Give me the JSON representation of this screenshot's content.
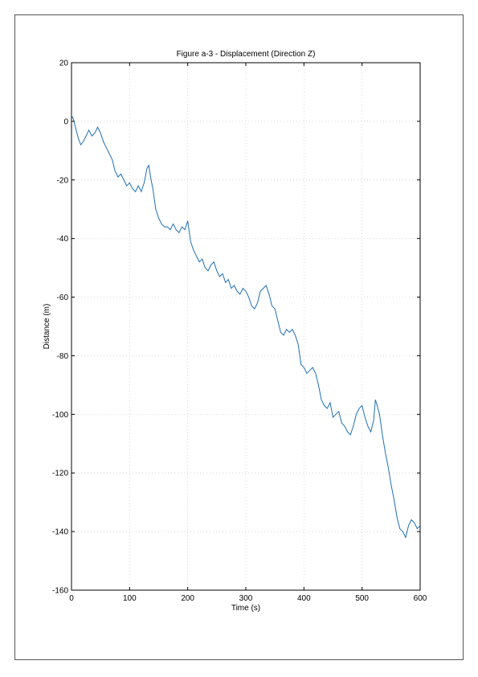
{
  "chart_data": {
    "type": "line",
    "title": "Figure a-3 - Displacement (Direction Z)",
    "xlabel": "Time (s)",
    "ylabel": "Distance (m)",
    "xlim": [
      0,
      600
    ],
    "ylim": [
      -160,
      20
    ],
    "xticks": [
      0,
      100,
      200,
      300,
      400,
      500,
      600
    ],
    "yticks": [
      20,
      0,
      -20,
      -40,
      -60,
      -80,
      -100,
      -120,
      -140,
      -160
    ],
    "xtick_labels": [
      "0",
      "100",
      "200",
      "300",
      "400",
      "500",
      "600"
    ],
    "ytick_labels": [
      "20",
      "0",
      "-20",
      "-40",
      "-60",
      "-80",
      "-100",
      "-120",
      "-140",
      "-160"
    ],
    "grid": true,
    "line_color": "#1f6fb4",
    "series": [
      {
        "x": [
          0,
          3,
          8,
          12,
          16,
          20,
          25,
          30,
          35,
          40,
          45,
          50,
          55,
          60,
          65,
          70,
          75,
          80,
          85,
          90,
          95,
          100,
          105,
          110,
          115,
          120,
          125,
          130,
          133,
          136,
          140,
          145,
          150,
          155,
          160,
          165,
          170,
          175,
          180,
          185,
          190,
          195,
          200,
          205,
          210,
          215,
          220,
          225,
          230,
          235,
          240,
          245,
          250,
          255,
          260,
          265,
          270,
          275,
          280,
          285,
          290,
          295,
          300,
          305,
          310,
          315,
          320,
          325,
          330,
          335,
          340,
          345,
          350,
          355,
          360,
          365,
          370,
          375,
          380,
          385,
          390,
          395,
          400,
          405,
          410,
          415,
          420,
          425,
          430,
          435,
          440,
          445,
          450,
          455,
          460,
          465,
          470,
          475,
          480,
          485,
          490,
          495,
          500,
          505,
          510,
          515,
          520,
          523,
          526,
          530,
          535,
          540,
          545,
          550,
          555,
          560,
          565,
          570,
          575,
          580,
          585,
          590,
          595,
          600
        ],
        "values": [
          2,
          1,
          -3,
          -6,
          -8,
          -7,
          -5,
          -3,
          -5,
          -4,
          -2,
          -4,
          -7,
          -9,
          -11,
          -13,
          -17,
          -19,
          -18,
          -20,
          -22,
          -21,
          -23,
          -24,
          -22,
          -24,
          -21,
          -16,
          -15,
          -19,
          -23,
          -30,
          -33,
          -35,
          -36,
          -36,
          -37,
          -35,
          -37,
          -38,
          -36,
          -37,
          -34,
          -41,
          -44,
          -46,
          -48,
          -47,
          -50,
          -51,
          -49,
          -48,
          -51,
          -53,
          -52,
          -55,
          -54,
          -57,
          -56,
          -58,
          -59,
          -57,
          -58,
          -60,
          -63,
          -64,
          -62,
          -58,
          -57,
          -56,
          -59,
          -63,
          -64,
          -68,
          -72,
          -73,
          -71,
          -72,
          -71,
          -73,
          -76,
          -83,
          -84,
          -86,
          -85,
          -84,
          -86,
          -90,
          -95,
          -97,
          -98,
          -96,
          -101,
          -100,
          -99,
          -103,
          -104,
          -106,
          -107,
          -104,
          -100,
          -98,
          -97,
          -101,
          -104,
          -106,
          -102,
          -95,
          -97,
          -100,
          -107,
          -113,
          -118,
          -124,
          -129,
          -135,
          -139,
          -140,
          -142,
          -138,
          -136,
          -137,
          -139,
          -138
        ]
      }
    ]
  }
}
